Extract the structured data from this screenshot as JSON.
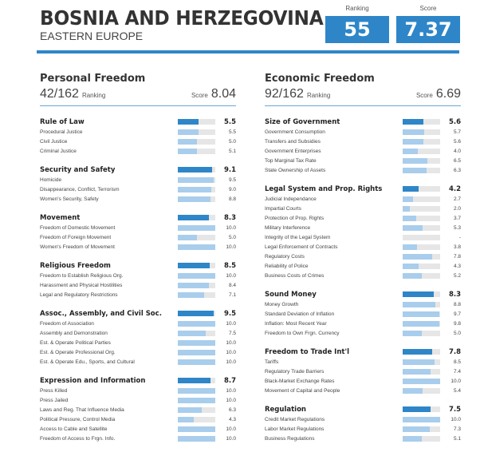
{
  "header": {
    "country": "BOSNIA AND HERZEGOVINA",
    "region": "EASTERN EUROPE",
    "ranking_label": "Ranking",
    "ranking": "55",
    "score_label": "Score",
    "score": "7.37"
  },
  "colors": {
    "accent": "#2e86c8",
    "bar_light": "#a9cdec",
    "bar_bg": "#e6e6e6"
  },
  "sections": [
    {
      "title": "Personal Freedom",
      "rank": "42/162",
      "rank_label": "Ranking",
      "score_label": "Score",
      "score": "8.04",
      "groups": [
        {
          "name": "Rule of Law",
          "value": "5.5",
          "items": [
            [
              "Procedural Justice",
              "5.5"
            ],
            [
              "Civil Justice",
              "5.0"
            ],
            [
              "Criminal Justice",
              "5.1"
            ]
          ]
        },
        {
          "name": "Security and Safety",
          "value": "9.1",
          "items": [
            [
              "Homicide",
              "9.5"
            ],
            [
              "Disappearance, Conflict, Terrorism",
              "9.0"
            ],
            [
              "Women's Security, Safety",
              "8.8"
            ]
          ]
        },
        {
          "name": "Movement",
          "value": "8.3",
          "items": [
            [
              "Freedom of Domestic Movement",
              "10.0"
            ],
            [
              "Freedom of Foreign Movement",
              "5.0"
            ],
            [
              "Women's Freedom of Movement",
              "10.0"
            ]
          ]
        },
        {
          "name": "Religious Freedom",
          "value": "8.5",
          "items": [
            [
              "Freedom to Establish Religious Org.",
              "10.0"
            ],
            [
              "Harassment and Physical Hostilities",
              "8.4"
            ],
            [
              "Legal and Regulatory Restrictions",
              "7.1"
            ]
          ]
        },
        {
          "name": "Assoc., Assembly, and Civil Soc.",
          "value": "9.5",
          "items": [
            [
              "Freedom of Association",
              "10.0"
            ],
            [
              "Assembly and Demonstration",
              "7.5"
            ],
            [
              "Est. & Operate Political Parties",
              "10.0"
            ],
            [
              "Est. & Operate Professional Org.",
              "10.0"
            ],
            [
              "Est. & Operate Edu., Sports, and Cultural",
              "10.0"
            ]
          ]
        },
        {
          "name": "Expression and Information",
          "value": "8.7",
          "items": [
            [
              "Press Killed",
              "10.0"
            ],
            [
              "Press Jailed",
              "10.0"
            ],
            [
              "Laws and Reg. That Influence Media",
              "6.3"
            ],
            [
              "Political Pressure, Control Media",
              "4.3"
            ],
            [
              "Access to Cable and Satellite",
              "10.0"
            ],
            [
              "Freedom of Access to Frgn. Info.",
              "10.0"
            ]
          ]
        }
      ]
    },
    {
      "title": "Economic Freedom",
      "rank": "92/162",
      "rank_label": "Ranking",
      "score_label": "Score",
      "score": "6.69",
      "groups": [
        {
          "name": "Size of Government",
          "value": "5.6",
          "items": [
            [
              "Government Consumption",
              "5.7"
            ],
            [
              "Transfers and Subsidies",
              "5.6"
            ],
            [
              "Government Enterprises",
              "4.0"
            ],
            [
              "Top Marginal Tax Rate",
              "6.5"
            ],
            [
              "State Ownership of Assets",
              "6.3"
            ]
          ]
        },
        {
          "name": "Legal System and Prop. Rights",
          "value": "4.2",
          "items": [
            [
              "Judicial Independance",
              "2.7"
            ],
            [
              "Impartial Courts",
              "2.0"
            ],
            [
              "Protection of Prop. Rights",
              "3.7"
            ],
            [
              "Military Interference",
              "5.3"
            ],
            [
              "Integrity of the Legal System",
              "-"
            ],
            [
              "Legal Enforcement of Contracts",
              "3.8"
            ],
            [
              "Regulatory Costs",
              "7.8"
            ],
            [
              "Reliability of Police",
              "4.3"
            ],
            [
              "Business Costs of Crimes",
              "5.2"
            ]
          ]
        },
        {
          "name": "Sound Money",
          "value": "8.3",
          "items": [
            [
              "Money Growth",
              "8.8"
            ],
            [
              "Standard Deviation of Inflation",
              "9.7"
            ],
            [
              "Inflation: Most Recent Year",
              "9.8"
            ],
            [
              "Freedom to Own Frgn. Currency",
              "5.0"
            ]
          ]
        },
        {
          "name": "Freedom to Trade Int'l",
          "value": "7.8",
          "items": [
            [
              "Tariffs",
              "8.5"
            ],
            [
              "Regulatory Trade Barriers",
              "7.4"
            ],
            [
              "Black-Market Exchange Rates",
              "10.0"
            ],
            [
              "Movement of Capital and People",
              "5.4"
            ]
          ]
        },
        {
          "name": "Regulation",
          "value": "7.5",
          "items": [
            [
              "Credit Market Regulations",
              "10.0"
            ],
            [
              "Labor Market Regulations",
              "7.3"
            ],
            [
              "Business Regulations",
              "5.1"
            ]
          ]
        }
      ]
    }
  ]
}
